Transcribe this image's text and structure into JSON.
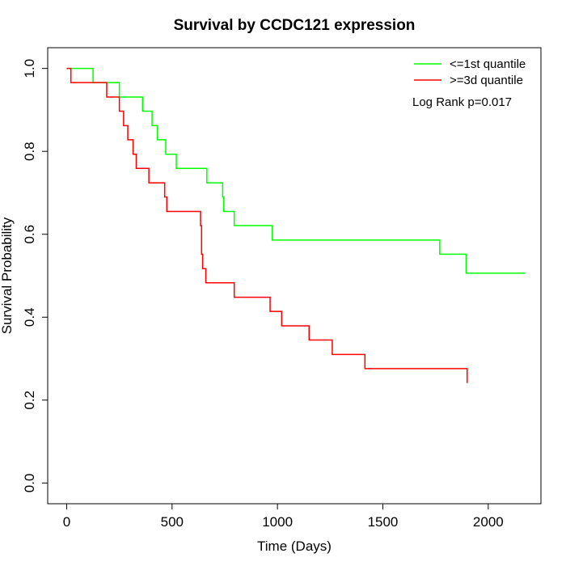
{
  "chart_data": {
    "type": "line",
    "title": "Survival by CCDC121 expression",
    "xlabel": "Time (Days)",
    "ylabel": "Survival Probability",
    "xlim": [
      -90,
      2250
    ],
    "ylim": [
      -0.05,
      1.05
    ],
    "x_ticks": [
      0,
      500,
      1000,
      1500,
      2000
    ],
    "x_tick_labels": [
      "0",
      "500",
      "1000",
      "1500",
      "2000"
    ],
    "y_ticks": [
      0.0,
      0.2,
      0.4,
      0.6,
      0.8,
      1.0
    ],
    "y_tick_labels": [
      "0.0",
      "0.2",
      "0.4",
      "0.6",
      "0.8",
      "1.0"
    ],
    "grid": false,
    "legend_position": "top-right",
    "annotation": "Log Rank p=0.017",
    "series": [
      {
        "name": "<=1st quantile",
        "color": "#00ff00",
        "step": true,
        "x": [
          0,
          125,
          250,
          360,
          405,
          430,
          470,
          520,
          665,
          740,
          745,
          795,
          975,
          1770,
          1895,
          2175
        ],
        "y": [
          1.0,
          0.966,
          0.931,
          0.897,
          0.862,
          0.828,
          0.793,
          0.759,
          0.724,
          0.69,
          0.655,
          0.621,
          0.586,
          0.552,
          0.506,
          0.506
        ]
      },
      {
        "name": ">=3d quantile",
        "color": "#ff0000",
        "step": true,
        "x": [
          0,
          20,
          190,
          250,
          270,
          290,
          315,
          330,
          390,
          465,
          475,
          635,
          640,
          645,
          660,
          795,
          965,
          1020,
          1150,
          1260,
          1415,
          1900
        ],
        "y": [
          1.0,
          0.966,
          0.931,
          0.897,
          0.862,
          0.828,
          0.793,
          0.759,
          0.724,
          0.69,
          0.655,
          0.621,
          0.552,
          0.517,
          0.483,
          0.448,
          0.414,
          0.379,
          0.345,
          0.31,
          0.276,
          0.241
        ]
      }
    ]
  }
}
